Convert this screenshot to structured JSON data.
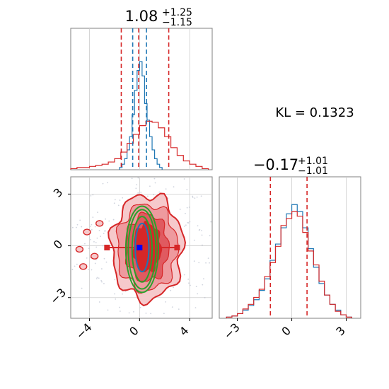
{
  "kl_label": "KL = 0.1323",
  "colors": {
    "series_a": "#1f77b4",
    "series_b": "#d62728",
    "contour_green": "#2ca02c",
    "grid": "#cccccc",
    "axes": "#808080"
  },
  "chart_data": [
    {
      "type": "histogram",
      "panel": "top-left (marginal of x)",
      "title_main": "1.08",
      "title_sup": "+1.25",
      "title_sub": "−1.15",
      "xlim": [
        -5.5,
        5.8
      ],
      "grid": true,
      "series": [
        {
          "color": "#1f77b4",
          "bin_edges": [
            -1.6,
            -1.4,
            -1.2,
            -1.0,
            -0.8,
            -0.6,
            -0.4,
            -0.2,
            0.0,
            0.2,
            0.4,
            0.6,
            0.8,
            1.0,
            1.2,
            1.4,
            1.6,
            1.8
          ],
          "counts": [
            0.02,
            0.05,
            0.1,
            0.18,
            0.3,
            0.5,
            0.72,
            0.9,
            0.98,
            0.85,
            0.6,
            0.45,
            0.3,
            0.18,
            0.1,
            0.05,
            0.02
          ],
          "quantile_lines": [
            -0.55,
            0.55
          ]
        },
        {
          "color": "#d62728",
          "bin_edges": [
            -5.5,
            -5.0,
            -4.5,
            -4.0,
            -3.5,
            -3.0,
            -2.5,
            -2.0,
            -1.5,
            -1.0,
            -0.5,
            0.0,
            0.5,
            1.0,
            1.5,
            2.0,
            2.5,
            3.0,
            3.5,
            4.0,
            4.5,
            5.0,
            5.5
          ],
          "counts": [
            0.01,
            0.02,
            0.02,
            0.03,
            0.04,
            0.05,
            0.07,
            0.1,
            0.16,
            0.24,
            0.32,
            0.4,
            0.44,
            0.43,
            0.38,
            0.3,
            0.2,
            0.13,
            0.08,
            0.05,
            0.03,
            0.01
          ],
          "quantile_lines": [
            -0.07,
            2.33
          ]
        }
      ]
    },
    {
      "type": "contour",
      "panel": "bottom-left (joint)",
      "xlim": [
        -5.5,
        5.8
      ],
      "ylim": [
        -4.2,
        4.0
      ],
      "xticks": [
        "−4",
        "0",
        "4"
      ],
      "yticks": [
        "−3",
        "0",
        "3"
      ],
      "grid": true,
      "point_markers": [
        {
          "x": -2.6,
          "y": -0.1,
          "color": "#d62728"
        },
        {
          "x": 3.0,
          "y": -0.1,
          "color": "#d62728"
        },
        {
          "x": 0.0,
          "y": -0.1,
          "color": "#0000ff"
        }
      ],
      "ellipses": [
        {
          "color": "#2ca02c",
          "cx": 0.2,
          "cy": -0.2,
          "rx": 1.1,
          "ry": 2.3
        },
        {
          "color": "#2ca02c",
          "cx": 0.2,
          "cy": -0.2,
          "rx": 0.8,
          "ry": 1.9
        },
        {
          "color": "#1f77b4",
          "cx": 0.2,
          "cy": -0.1,
          "rx": 0.55,
          "ry": 1.4
        }
      ]
    },
    {
      "type": "histogram",
      "panel": "bottom-right (marginal of y)",
      "title_main": "−0.17",
      "title_sup": "+1.01",
      "title_sub": "−1.01",
      "xlim": [
        -4.0,
        3.8
      ],
      "xticks": [
        "−3",
        "0",
        "3"
      ],
      "grid": true,
      "series": [
        {
          "color": "#1f77b4",
          "bin_edges": [
            -3.6,
            -3.3,
            -3.0,
            -2.7,
            -2.4,
            -2.1,
            -1.8,
            -1.5,
            -1.2,
            -0.9,
            -0.6,
            -0.3,
            0.0,
            0.3,
            0.6,
            0.9,
            1.2,
            1.5,
            1.8,
            2.1,
            2.4,
            2.7,
            3.0,
            3.3
          ],
          "counts": [
            0.01,
            0.02,
            0.04,
            0.07,
            0.11,
            0.16,
            0.24,
            0.34,
            0.5,
            0.64,
            0.78,
            0.9,
            0.98,
            0.92,
            0.78,
            0.6,
            0.44,
            0.3,
            0.2,
            0.12,
            0.07,
            0.03,
            0.01
          ]
        },
        {
          "color": "#d62728",
          "bin_edges": [
            -3.6,
            -3.3,
            -3.0,
            -2.7,
            -2.4,
            -2.1,
            -1.8,
            -1.5,
            -1.2,
            -0.9,
            -0.6,
            -0.3,
            0.0,
            0.3,
            0.6,
            0.9,
            1.2,
            1.5,
            1.8,
            2.1,
            2.4,
            2.7,
            3.0,
            3.3
          ],
          "counts": [
            0.01,
            0.02,
            0.04,
            0.08,
            0.12,
            0.18,
            0.25,
            0.36,
            0.48,
            0.62,
            0.8,
            0.86,
            0.92,
            0.88,
            0.74,
            0.58,
            0.46,
            0.32,
            0.2,
            0.12,
            0.06,
            0.03,
            0.01
          ],
          "quantile_lines": [
            -1.18,
            0.84
          ]
        }
      ]
    }
  ]
}
